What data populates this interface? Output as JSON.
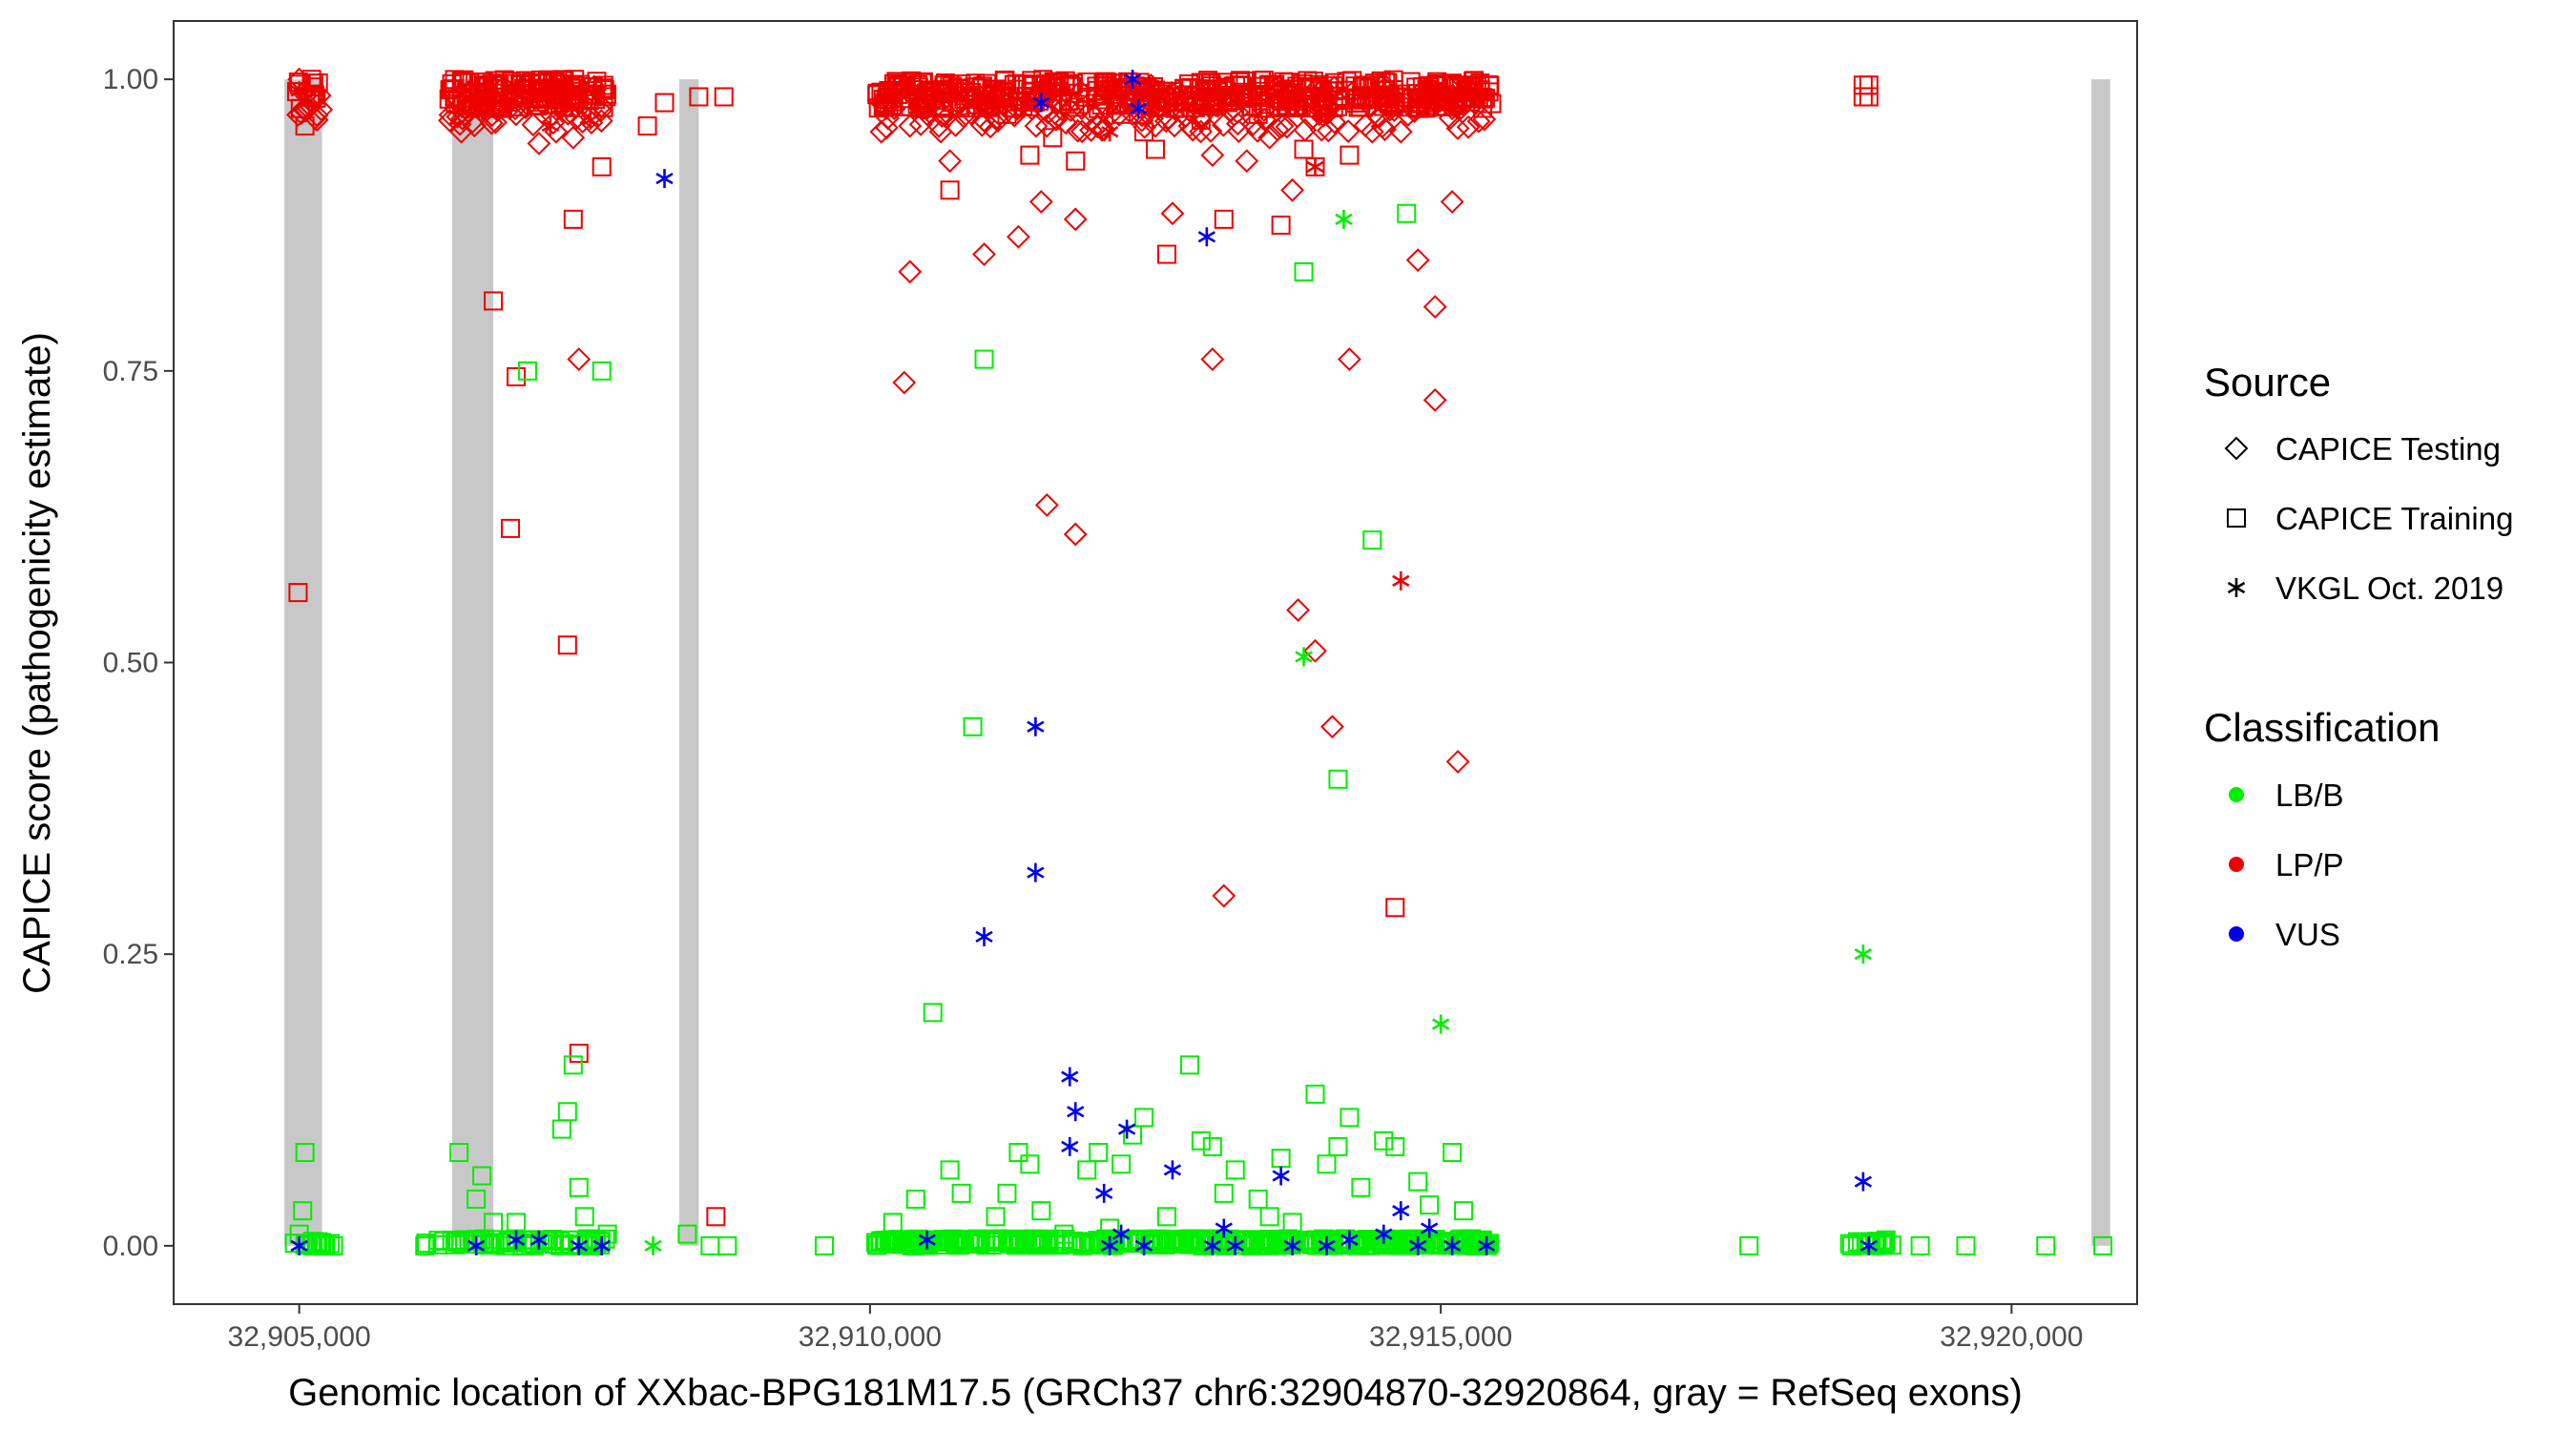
{
  "chart_data": {
    "type": "scatter",
    "title": "",
    "xlabel": "Genomic location of XXbac-BPG181M17.5 (GRCh37 chr6:32904870-32920864, gray = RefSeq exons)",
    "ylabel": "CAPICE score (pathogenicity estimate)",
    "xlim": [
      32903900,
      32921100
    ],
    "ylim": [
      -0.05,
      1.05
    ],
    "x_ticks": [
      32905000,
      32910000,
      32915000,
      32920000
    ],
    "x_tick_labels": [
      "32,905,000",
      "32,910,000",
      "32,915,000",
      "32,920,000"
    ],
    "y_ticks": [
      0,
      0.25,
      0.5,
      0.75,
      1
    ],
    "y_tick_labels": [
      "0.00",
      "0.25",
      "0.50",
      "0.75",
      "1.00"
    ],
    "grid": false,
    "exons": [
      [
        32904870,
        32905200
      ],
      [
        32906340,
        32906700
      ],
      [
        32908330,
        32908500
      ],
      [
        32920700,
        32920864
      ]
    ],
    "colors": {
      "LB/B": "#00ee00",
      "LP/P": "#ee0000",
      "VUS": "#0000ee",
      "exon": "#c8c8c8"
    },
    "legend": {
      "position": "right",
      "source_title": "Source",
      "source_items": [
        {
          "label": "CAPICE Testing",
          "shape": "diamond"
        },
        {
          "label": "CAPICE Training",
          "shape": "square"
        },
        {
          "label": "VKGL Oct. 2019",
          "shape": "asterisk"
        }
      ],
      "class_title": "Classification",
      "class_items": [
        {
          "label": "LB/B",
          "color": "#00ee00"
        },
        {
          "label": "LP/P",
          "color": "#ee0000"
        },
        {
          "label": "VUS",
          "color": "#0000ee"
        }
      ]
    },
    "series": [
      {
        "name": "CAPICE Testing",
        "shape": "diamond",
        "class": "LP/P",
        "points": [
          [
            32905000,
            1.0
          ],
          [
            32905050,
            0.99
          ],
          [
            32905080,
            0.975
          ],
          [
            32906420,
            0.955
          ],
          [
            32906600,
            0.985
          ],
          [
            32906900,
            0.97
          ],
          [
            32907100,
            0.945
          ],
          [
            32907250,
            0.955
          ],
          [
            32907400,
            0.95
          ],
          [
            32907450,
            0.76
          ],
          [
            32910100,
            0.955
          ],
          [
            32910300,
            0.74
          ],
          [
            32910350,
            0.835
          ],
          [
            32910350,
            0.96
          ],
          [
            32910500,
            0.97
          ],
          [
            32910700,
            0.93
          ],
          [
            32911000,
            0.85
          ],
          [
            32911300,
            0.865
          ],
          [
            32911500,
            0.895
          ],
          [
            32911550,
            0.635
          ],
          [
            32911800,
            0.88
          ],
          [
            32911800,
            0.61
          ],
          [
            32912000,
            0.96
          ],
          [
            32912300,
            0.97
          ],
          [
            32912500,
            0.96
          ],
          [
            32912650,
            0.885
          ],
          [
            32912800,
            0.96
          ],
          [
            32913000,
            0.935
          ],
          [
            32913000,
            0.76
          ],
          [
            32913100,
            0.3
          ],
          [
            32913300,
            0.93
          ],
          [
            32913500,
            0.95
          ],
          [
            32913700,
            0.905
          ],
          [
            32913750,
            0.545
          ],
          [
            32913900,
            0.51
          ],
          [
            32914000,
            0.97
          ],
          [
            32914050,
            0.445
          ],
          [
            32914200,
            0.76
          ],
          [
            32914400,
            0.955
          ],
          [
            32914500,
            0.98
          ],
          [
            32914650,
            0.955
          ],
          [
            32914800,
            0.845
          ],
          [
            32914950,
            0.805
          ],
          [
            32914950,
            0.725
          ],
          [
            32915100,
            0.975
          ],
          [
            32915100,
            0.895
          ],
          [
            32915150,
            0.415
          ],
          [
            32915300,
            0.985
          ]
        ]
      },
      {
        "name": "CAPICE Training",
        "shape": "square",
        "class": "LP/P",
        "points": [
          [
            32904990,
            0.56
          ],
          [
            32905010,
            0.975
          ],
          [
            32905050,
            0.96
          ],
          [
            32906500,
            0.975
          ],
          [
            32906700,
            0.81
          ],
          [
            32906850,
            0.615
          ],
          [
            32906900,
            0.745
          ],
          [
            32907100,
            0.985
          ],
          [
            32907350,
            0.515
          ],
          [
            32907400,
            0.88
          ],
          [
            32907450,
            0.165
          ],
          [
            32907650,
            0.925
          ],
          [
            32908050,
            0.96
          ],
          [
            32908200,
            0.98
          ],
          [
            32908500,
            0.985
          ],
          [
            32908650,
            0.025
          ],
          [
            32908720,
            0.985
          ],
          [
            32910150,
            0.985
          ],
          [
            32910450,
            0.975
          ],
          [
            32910700,
            0.905
          ],
          [
            32911200,
            0.97
          ],
          [
            32911400,
            0.935
          ],
          [
            32911600,
            0.95
          ],
          [
            32911800,
            0.93
          ],
          [
            32912000,
            0.975
          ],
          [
            32912200,
            0.97
          ],
          [
            32912400,
            0.955
          ],
          [
            32912500,
            0.94
          ],
          [
            32912600,
            0.85
          ],
          [
            32912900,
            0.965
          ],
          [
            32913100,
            0.88
          ],
          [
            32913400,
            0.97
          ],
          [
            32913600,
            0.875
          ],
          [
            32913800,
            0.94
          ],
          [
            32913900,
            0.925
          ],
          [
            32914200,
            0.935
          ],
          [
            32914300,
            0.98
          ],
          [
            32914600,
            0.29
          ],
          [
            32914800,
            0.975
          ],
          [
            32918700,
            0.995
          ],
          [
            32918700,
            0.985
          ],
          [
            32918750,
            0.995
          ],
          [
            32918750,
            0.985
          ]
        ]
      },
      {
        "name": "VKGL Oct. 2019",
        "shape": "asterisk",
        "class": "LP/P",
        "points": [
          [
            32905000,
            0.99
          ],
          [
            32907200,
            0.96
          ],
          [
            32907550,
            0.965
          ],
          [
            32912100,
            0.955
          ],
          [
            32913900,
            0.925
          ],
          [
            32914650,
            0.57
          ]
        ]
      },
      {
        "name": "CAPICE Training",
        "shape": "square",
        "class": "LB/B",
        "points": [
          [
            32905050,
            0.08
          ],
          [
            32905030,
            0.03
          ],
          [
            32905000,
            0.01
          ],
          [
            32905150,
            0.0
          ],
          [
            32905300,
            0.0
          ],
          [
            32906100,
            0.0
          ],
          [
            32906400,
            0.08
          ],
          [
            32906550,
            0.04
          ],
          [
            32906600,
            0.06
          ],
          [
            32906700,
            0.02
          ],
          [
            32906900,
            0.02
          ],
          [
            32907000,
            0.75
          ],
          [
            32907300,
            0.1
          ],
          [
            32907350,
            0.115
          ],
          [
            32907400,
            0.155
          ],
          [
            32907450,
            0.05
          ],
          [
            32907500,
            0.025
          ],
          [
            32907650,
            0.75
          ],
          [
            32907700,
            0.01
          ],
          [
            32908400,
            0.01
          ],
          [
            32908600,
            0.0
          ],
          [
            32908750,
            0.0
          ],
          [
            32909600,
            0.0
          ],
          [
            32910200,
            0.02
          ],
          [
            32910400,
            0.04
          ],
          [
            32910550,
            0.2
          ],
          [
            32910700,
            0.065
          ],
          [
            32910800,
            0.045
          ],
          [
            32910900,
            0.445
          ],
          [
            32911000,
            0.76
          ],
          [
            32911100,
            0.025
          ],
          [
            32911200,
            0.045
          ],
          [
            32911300,
            0.08
          ],
          [
            32911400,
            0.07
          ],
          [
            32911500,
            0.03
          ],
          [
            32911700,
            0.01
          ],
          [
            32911900,
            0.065
          ],
          [
            32912000,
            0.08
          ],
          [
            32912100,
            0.015
          ],
          [
            32912200,
            0.07
          ],
          [
            32912300,
            0.095
          ],
          [
            32912400,
            0.11
          ],
          [
            32912600,
            0.025
          ],
          [
            32912800,
            0.155
          ],
          [
            32912900,
            0.09
          ],
          [
            32913000,
            0.085
          ],
          [
            32913100,
            0.045
          ],
          [
            32913200,
            0.065
          ],
          [
            32913400,
            0.04
          ],
          [
            32913500,
            0.025
          ],
          [
            32913600,
            0.075
          ],
          [
            32913700,
            0.02
          ],
          [
            32913800,
            0.835
          ],
          [
            32913900,
            0.13
          ],
          [
            32914000,
            0.07
          ],
          [
            32914100,
            0.085
          ],
          [
            32914100,
            0.4
          ],
          [
            32914200,
            0.11
          ],
          [
            32914300,
            0.05
          ],
          [
            32914400,
            0.605
          ],
          [
            32914500,
            0.09
          ],
          [
            32914600,
            0.085
          ],
          [
            32914700,
            0.885
          ],
          [
            32914800,
            0.055
          ],
          [
            32914900,
            0.035
          ],
          [
            32915100,
            0.08
          ],
          [
            32915200,
            0.03
          ],
          [
            32915300,
            0.0
          ],
          [
            32917700,
            0.0
          ],
          [
            32918600,
            0.0
          ],
          [
            32918900,
            0.005
          ],
          [
            32919200,
            0.0
          ],
          [
            32919600,
            0.0
          ],
          [
            32920300,
            0.0
          ],
          [
            32920800,
            0.0
          ]
        ]
      },
      {
        "name": "VKGL Oct. 2019",
        "shape": "asterisk",
        "class": "LB/B",
        "points": [
          [
            32908100,
            0.0
          ],
          [
            32913800,
            0.505
          ],
          [
            32914150,
            0.88
          ],
          [
            32915000,
            0.19
          ],
          [
            32918700,
            0.25
          ]
        ]
      },
      {
        "name": "VKGL Oct. 2019",
        "shape": "asterisk",
        "class": "VUS",
        "points": [
          [
            32905000,
            0.0
          ],
          [
            32906550,
            0.0
          ],
          [
            32906900,
            0.005
          ],
          [
            32907100,
            0.005
          ],
          [
            32907450,
            0.0
          ],
          [
            32907650,
            0.0
          ],
          [
            32908200,
            0.915
          ],
          [
            32910500,
            0.005
          ],
          [
            32911000,
            0.265
          ],
          [
            32911450,
            0.445
          ],
          [
            32911450,
            0.32
          ],
          [
            32911500,
            0.98
          ],
          [
            32911750,
            0.145
          ],
          [
            32911750,
            0.085
          ],
          [
            32911800,
            0.115
          ],
          [
            32912050,
            0.045
          ],
          [
            32912100,
            0.0
          ],
          [
            32912200,
            0.01
          ],
          [
            32912250,
            0.1
          ],
          [
            32912300,
            1.0
          ],
          [
            32912350,
            0.975
          ],
          [
            32912400,
            0.0
          ],
          [
            32912650,
            0.065
          ],
          [
            32912950,
            0.865
          ],
          [
            32913000,
            0.0
          ],
          [
            32913100,
            0.015
          ],
          [
            32913200,
            0.0
          ],
          [
            32913600,
            0.06
          ],
          [
            32913700,
            0.0
          ],
          [
            32914000,
            0.0
          ],
          [
            32914200,
            0.005
          ],
          [
            32914500,
            0.01
          ],
          [
            32914650,
            0.03
          ],
          [
            32914800,
            0.0
          ],
          [
            32914900,
            0.015
          ],
          [
            32915100,
            0.0
          ],
          [
            32915400,
            0.0
          ],
          [
            32918700,
            0.055
          ],
          [
            32918750,
            0.0
          ]
        ]
      }
    ],
    "dense_bands": [
      {
        "x_range": [
          32904950,
          32905200
        ],
        "y_range": [
          0.98,
          1.0
        ],
        "shape": "square",
        "class": "LP/P",
        "count": 12
      },
      {
        "x_range": [
          32904950,
          32905200
        ],
        "y_range": [
          0.96,
          0.99
        ],
        "shape": "diamond",
        "class": "LP/P",
        "count": 10
      },
      {
        "x_range": [
          32904950,
          32905350
        ],
        "y_range": [
          0.0,
          0.004
        ],
        "shape": "square",
        "class": "LB/B",
        "count": 16
      },
      {
        "x_range": [
          32906300,
          32907700
        ],
        "y_range": [
          0.975,
          1.0
        ],
        "shape": "square",
        "class": "LP/P",
        "count": 140
      },
      {
        "x_range": [
          32906300,
          32907700
        ],
        "y_range": [
          0.96,
          0.995
        ],
        "shape": "diamond",
        "class": "LP/P",
        "count": 55
      },
      {
        "x_range": [
          32906100,
          32907700
        ],
        "y_range": [
          0.0,
          0.006
        ],
        "shape": "square",
        "class": "LB/B",
        "count": 70
      },
      {
        "x_range": [
          32910050,
          32915450
        ],
        "y_range": [
          0.975,
          1.0
        ],
        "shape": "square",
        "class": "LP/P",
        "count": 480
      },
      {
        "x_range": [
          32910050,
          32915450
        ],
        "y_range": [
          0.955,
          0.995
        ],
        "shape": "diamond",
        "class": "LP/P",
        "count": 180
      },
      {
        "x_range": [
          32910050,
          32915450
        ],
        "y_range": [
          0.0,
          0.006
        ],
        "shape": "square",
        "class": "LB/B",
        "count": 420
      },
      {
        "x_range": [
          32918550,
          32918950
        ],
        "y_range": [
          0.0,
          0.004
        ],
        "shape": "square",
        "class": "LB/B",
        "count": 14
      }
    ]
  }
}
